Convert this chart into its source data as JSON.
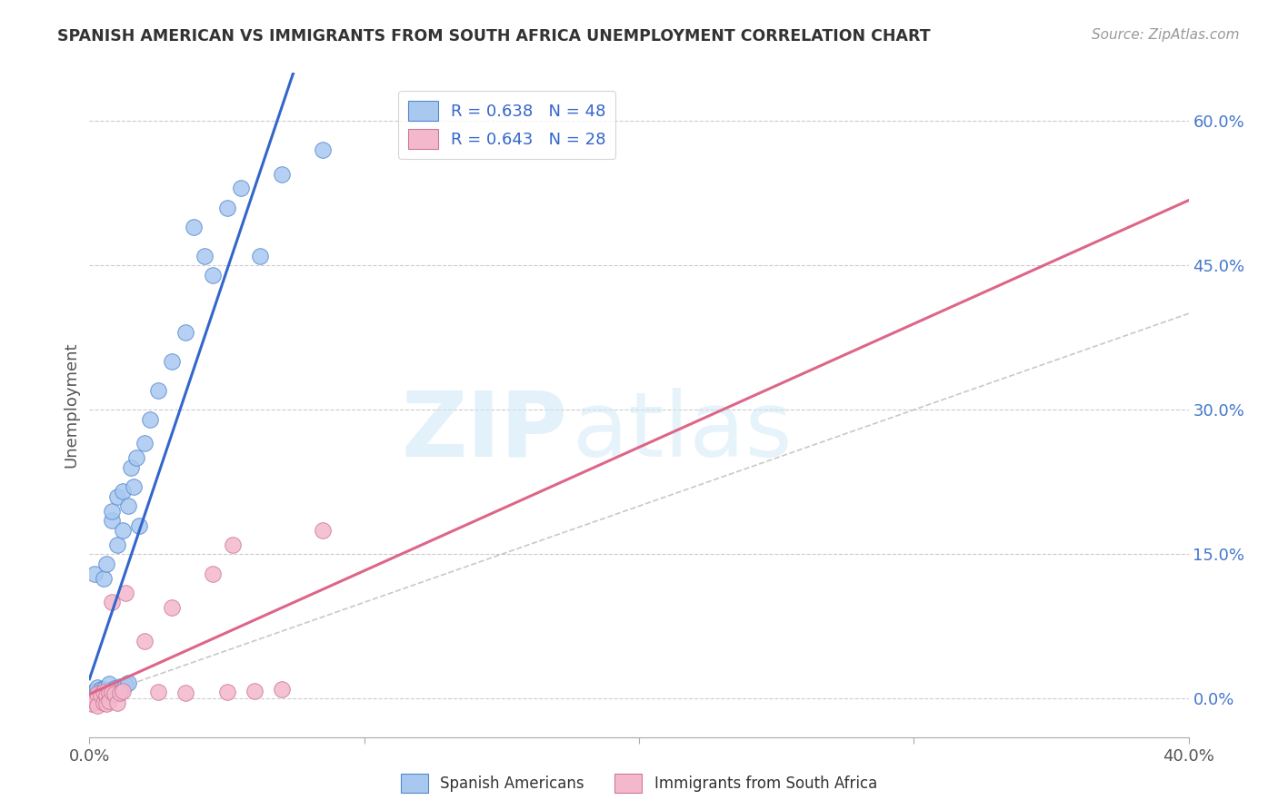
{
  "title": "SPANISH AMERICAN VS IMMIGRANTS FROM SOUTH AFRICA UNEMPLOYMENT CORRELATION CHART",
  "source": "Source: ZipAtlas.com",
  "ylabel": "Unemployment",
  "ylabel_right_ticks": [
    "60.0%",
    "45.0%",
    "30.0%",
    "15.0%",
    "0.0%"
  ],
  "ylabel_right_vals": [
    0.6,
    0.45,
    0.3,
    0.15,
    0.0
  ],
  "legend1_label": "R = 0.638   N = 48",
  "legend2_label": "R = 0.643   N = 28",
  "watermark_zip": "ZIP",
  "watermark_atlas": "atlas",
  "blue_color": "#a8c8f0",
  "blue_edge_color": "#5588cc",
  "blue_line_color": "#3366cc",
  "pink_color": "#f4b8cc",
  "pink_edge_color": "#cc7799",
  "pink_line_color": "#dd6688",
  "ref_line_color": "#bbbbbb",
  "blue_scatter_x": [
    0.001,
    0.002,
    0.002,
    0.003,
    0.003,
    0.004,
    0.004,
    0.005,
    0.005,
    0.005,
    0.006,
    0.006,
    0.006,
    0.007,
    0.007,
    0.007,
    0.008,
    0.008,
    0.008,
    0.009,
    0.009,
    0.01,
    0.01,
    0.01,
    0.011,
    0.011,
    0.012,
    0.012,
    0.013,
    0.014,
    0.014,
    0.015,
    0.016,
    0.017,
    0.018,
    0.02,
    0.022,
    0.025,
    0.03,
    0.035,
    0.038,
    0.042,
    0.045,
    0.05,
    0.055,
    0.062,
    0.07,
    0.085
  ],
  "blue_scatter_y": [
    0.005,
    0.008,
    0.13,
    0.007,
    0.012,
    0.006,
    0.01,
    0.004,
    0.01,
    0.125,
    0.005,
    0.008,
    0.14,
    0.006,
    0.009,
    0.015,
    0.185,
    0.008,
    0.195,
    0.007,
    0.011,
    0.006,
    0.16,
    0.21,
    0.007,
    0.013,
    0.175,
    0.215,
    0.014,
    0.016,
    0.2,
    0.24,
    0.22,
    0.25,
    0.18,
    0.265,
    0.29,
    0.32,
    0.35,
    0.38,
    0.49,
    0.46,
    0.44,
    0.51,
    0.53,
    0.46,
    0.545,
    0.57
  ],
  "pink_scatter_x": [
    0.001,
    0.002,
    0.003,
    0.003,
    0.004,
    0.005,
    0.005,
    0.006,
    0.006,
    0.007,
    0.007,
    0.008,
    0.008,
    0.009,
    0.01,
    0.011,
    0.012,
    0.013,
    0.02,
    0.025,
    0.03,
    0.035,
    0.045,
    0.05,
    0.052,
    0.06,
    0.07,
    0.085
  ],
  "pink_scatter_y": [
    -0.005,
    -0.003,
    0.005,
    -0.007,
    0.004,
    -0.004,
    0.007,
    0.003,
    -0.005,
    0.006,
    -0.003,
    0.007,
    0.1,
    0.005,
    -0.004,
    0.006,
    0.008,
    0.11,
    0.06,
    0.007,
    0.095,
    0.006,
    0.13,
    0.007,
    0.16,
    0.008,
    0.01,
    0.175
  ],
  "xmin": 0.0,
  "xmax": 0.4,
  "ymin": -0.04,
  "ymax": 0.65,
  "grid_color": "#cccccc",
  "background_color": "#ffffff"
}
